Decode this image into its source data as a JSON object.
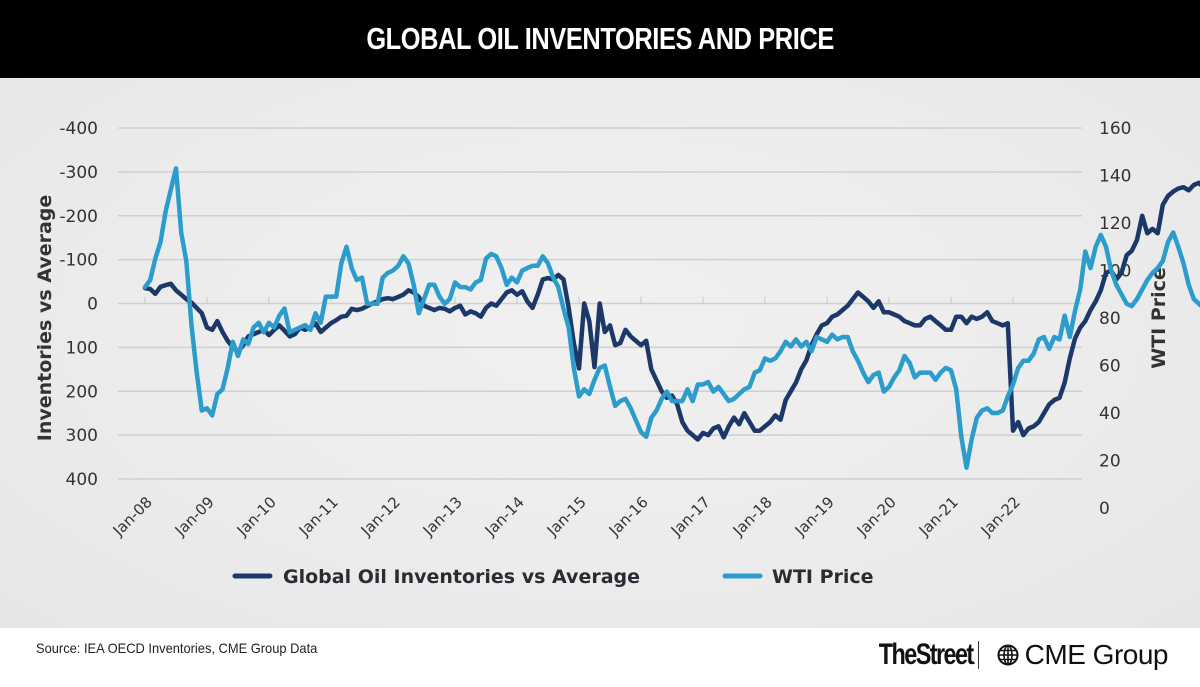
{
  "header": {
    "title": "GLOBAL OIL INVENTORIES AND PRICE"
  },
  "footer": {
    "source": "Source: IEA OECD Inventories, CME Group Data",
    "logo_left": "TheStreet",
    "logo_left_mark": ".",
    "logo_right": "CME Group",
    "logo_right_icon": "globe-icon"
  },
  "colors": {
    "inventories": "#1c3868",
    "wti": "#2b9ccb",
    "grid": "#cfcfcf",
    "title_bg": "#000000",
    "title_fg": "#ffffff"
  },
  "chart_data": {
    "type": "line",
    "title": "GLOBAL OIL INVENTORIES AND PRICE",
    "xlabel": "",
    "ylabel": "Inventories vs Average",
    "y2label": "WTI Price",
    "ylim": [
      400,
      -400
    ],
    "y_inverted": true,
    "y2lim": [
      0,
      160
    ],
    "yticks": [
      "-400",
      "-300",
      "-200",
      "-100",
      "0",
      "100",
      "200",
      "300",
      "400"
    ],
    "y2ticks": [
      "160",
      "140",
      "120",
      "100",
      "80",
      "60",
      "40",
      "20",
      "0"
    ],
    "xticks": [
      "Jan-08",
      "Jan-09",
      "Jan-10",
      "Jan-11",
      "Jan-12",
      "Jan-13",
      "Jan-14",
      "Jan-15",
      "Jan-16",
      "Jan-17",
      "Jan-18",
      "Jan-19",
      "Jan-20",
      "Jan-21",
      "Jan-22"
    ],
    "x_start": "Jan-08",
    "x_frequency": "monthly",
    "grid": true,
    "legend": "bottom-center",
    "series": [
      {
        "name": "Global Oil Inventories vs Average",
        "axis": "left",
        "values": [
          -35,
          -33,
          -22,
          -38,
          -42,
          -45,
          -30,
          -20,
          -10,
          -2,
          10,
          22,
          55,
          60,
          40,
          65,
          85,
          100,
          110,
          95,
          75,
          70,
          65,
          60,
          72,
          60,
          50,
          62,
          75,
          70,
          55,
          60,
          55,
          45,
          65,
          55,
          45,
          38,
          30,
          28,
          12,
          15,
          12,
          6,
          0,
          -5,
          -10,
          -12,
          -10,
          -15,
          -20,
          -30,
          -25,
          -15,
          5,
          10,
          15,
          10,
          12,
          18,
          10,
          5,
          25,
          18,
          22,
          30,
          10,
          0,
          5,
          -10,
          -25,
          -30,
          -20,
          -28,
          -5,
          10,
          -20,
          -55,
          -58,
          -55,
          -65,
          -55,
          10,
          90,
          148,
          0,
          40,
          145,
          0,
          65,
          50,
          95,
          90,
          60,
          75,
          85,
          95,
          85,
          150,
          175,
          200,
          215,
          210,
          230,
          270,
          290,
          300,
          310,
          295,
          300,
          285,
          280,
          305,
          280,
          260,
          275,
          250,
          270,
          290,
          290,
          280,
          270,
          255,
          265,
          220,
          200,
          180,
          150,
          130,
          95,
          70,
          50,
          45,
          30,
          25,
          15,
          5,
          -10,
          -25,
          -15,
          -5,
          10,
          -5,
          20,
          20,
          25,
          30,
          40,
          45,
          50,
          50,
          35,
          30,
          40,
          50,
          60,
          60,
          30,
          30,
          45,
          30,
          35,
          30,
          20,
          40,
          45,
          50,
          45,
          290,
          270,
          300,
          285,
          280,
          270,
          250,
          230,
          220,
          215,
          180,
          125,
          80,
          55,
          40,
          15,
          -5,
          -30,
          -70,
          -75,
          -55,
          -70,
          -110,
          -120,
          -145,
          -200,
          -160,
          -170,
          -160,
          -225,
          -245,
          -255,
          -262,
          -265,
          -258,
          -270,
          -275,
          -263
        ]
      },
      {
        "name": "WTI Price",
        "axis": "right",
        "values": [
          93,
          96,
          105,
          112,
          125,
          134,
          143,
          116,
          104,
          77,
          57,
          41,
          42,
          39,
          48,
          50,
          59,
          70,
          64,
          71,
          69,
          76,
          78,
          74,
          78,
          76,
          81,
          84,
          74,
          75,
          76,
          77,
          75,
          82,
          78,
          89,
          89,
          89,
          103,
          110,
          101,
          96,
          97,
          86,
          86,
          86,
          97,
          99,
          100,
          102,
          106,
          103,
          94,
          82,
          88,
          94,
          94,
          89,
          86,
          88,
          95,
          93,
          93,
          92,
          95,
          96,
          105,
          107,
          106,
          101,
          94,
          97,
          95,
          100,
          101,
          102,
          102,
          106,
          103,
          97,
          93,
          84,
          76,
          59,
          47,
          50,
          48,
          54,
          59,
          60,
          51,
          43,
          45,
          46,
          42,
          37,
          32,
          30,
          38,
          41,
          46,
          49,
          45,
          45,
          45,
          50,
          45,
          52,
          52,
          53,
          49,
          51,
          48,
          45,
          46,
          48,
          50,
          51,
          57,
          58,
          63,
          62,
          63,
          66,
          70,
          68,
          71,
          68,
          70,
          66,
          72,
          71,
          70,
          73,
          71,
          72,
          72,
          66,
          62,
          57,
          53,
          56,
          57,
          49,
          51,
          55,
          58,
          64,
          61,
          55,
          57,
          57,
          57,
          54,
          57,
          59,
          58,
          50,
          30,
          17,
          29,
          38,
          41,
          42,
          40,
          40,
          41,
          47,
          52,
          59,
          62,
          62,
          65,
          71,
          72,
          67,
          72,
          71,
          81,
          72,
          83,
          92,
          108,
          101,
          110,
          115,
          110,
          100,
          94,
          90,
          86,
          85,
          88,
          92,
          96,
          99,
          101,
          104,
          112,
          116,
          110,
          103,
          94,
          88,
          86,
          84
        ]
      }
    ]
  },
  "legend": {
    "items": [
      {
        "label": "Global Oil Inventories vs Average",
        "color": "#1c3868"
      },
      {
        "label": "WTI Price",
        "color": "#2b9ccb"
      }
    ]
  }
}
